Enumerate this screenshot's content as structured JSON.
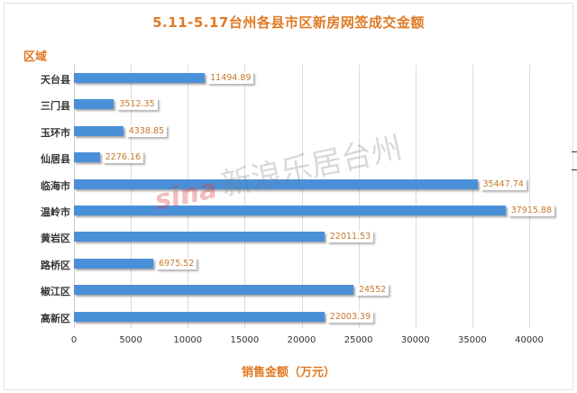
{
  "chart_data": {
    "type": "bar",
    "orientation": "horizontal",
    "title": "5.11-5.17台州各县市区新房网签成交金额",
    "xlabel": "销售金额（万元）",
    "ylabel": "区域",
    "categories": [
      "天台县",
      "三门县",
      "玉环市",
      "仙居县",
      "临海市",
      "温岭市",
      "黄岩区",
      "路桥区",
      "椒江区",
      "高新区"
    ],
    "values": [
      11494.89,
      3512.35,
      4338.85,
      2276.16,
      35447.74,
      37915.88,
      22011.53,
      6975.52,
      24552,
      22003.39
    ],
    "value_labels": [
      "11494.89",
      "3512.35",
      "4338.85",
      "2276.16",
      "35447.74",
      "37915.88",
      "22011.53",
      "6975.52",
      "24552",
      "22003.39"
    ],
    "xlim": [
      0,
      40000
    ],
    "xticks": [
      "0",
      "5000",
      "10000",
      "15000",
      "20000",
      "25000",
      "30000",
      "35000",
      "40000"
    ],
    "grid": true,
    "legend": "none",
    "bar_color": "#4a90d9",
    "label_color": "#c8782a",
    "title_color": "#e07a24"
  },
  "watermark": {
    "brand": "sina",
    "text": "新浪乐居台州"
  }
}
